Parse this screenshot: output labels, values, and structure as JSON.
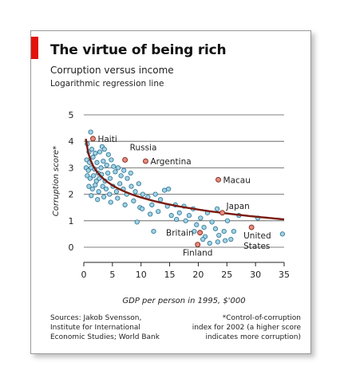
{
  "title": "The virtue of being rich",
  "subtitle": "Corruption versus income",
  "note": "Logarithmic regression line",
  "colors": {
    "brand_red": "#e3120b",
    "dot_fill": "#9fd3e2",
    "dot_stroke": "#2a6f93",
    "highlight_fill": "#e9897c",
    "highlight_stroke": "#7a2a1e",
    "regression": "#7a1a0f"
  },
  "sources": [
    "Sources: Jakob Svensson,",
    "Institute for International",
    "Economic Studies; World Bank"
  ],
  "footnote": [
    "*Control-of-corruption",
    "index for 2002 (a higher score",
    "indicates more corruption)"
  ],
  "chart_data": {
    "type": "scatter",
    "xlabel": "GDP per person in 1995, $'000",
    "ylabel": "Corruption score*",
    "xlim": [
      0,
      35
    ],
    "ylim": [
      -0.3,
      5
    ],
    "xticks": [
      0,
      5,
      10,
      15,
      20,
      25,
      30,
      35
    ],
    "yticks": [
      0,
      1,
      2,
      3,
      4,
      5
    ],
    "grid": "horizontal",
    "regression": {
      "form": "a - b*ln(x)",
      "a": 3.4,
      "b": 0.66,
      "x_range": [
        0.35,
        35
      ]
    },
    "highlighted": [
      {
        "label": "Haiti",
        "x": 1.6,
        "y": 4.1
      },
      {
        "label": "Russia",
        "x": 7.2,
        "y": 3.3
      },
      {
        "label": "Argentina",
        "x": 10.8,
        "y": 3.25
      },
      {
        "label": "Macau",
        "x": 23.5,
        "y": 2.55
      },
      {
        "label": "Japan",
        "x": 24.2,
        "y": 1.3
      },
      {
        "label": "Britain",
        "x": 20.3,
        "y": 0.55
      },
      {
        "label": "Finland",
        "x": 19.9,
        "y": 0.1
      },
      {
        "label": "United States",
        "x": 29.3,
        "y": 0.75
      }
    ],
    "points": [
      [
        1.2,
        4.35
      ],
      [
        0.6,
        3.9
      ],
      [
        0.9,
        3.6
      ],
      [
        1.4,
        3.7
      ],
      [
        2.0,
        3.55
      ],
      [
        0.5,
        3.3
      ],
      [
        1.0,
        3.2
      ],
      [
        1.6,
        3.4
      ],
      [
        2.3,
        3.2
      ],
      [
        2.8,
        3.6
      ],
      [
        3.2,
        3.8
      ],
      [
        3.6,
        3.7
      ],
      [
        0.4,
        3.0
      ],
      [
        0.8,
        2.9
      ],
      [
        1.3,
        3.0
      ],
      [
        1.9,
        2.95
      ],
      [
        2.5,
        2.8
      ],
      [
        3.0,
        3.0
      ],
      [
        3.4,
        3.25
      ],
      [
        4.0,
        3.1
      ],
      [
        4.3,
        3.5
      ],
      [
        4.8,
        3.3
      ],
      [
        5.2,
        3.05
      ],
      [
        0.6,
        2.7
      ],
      [
        1.1,
        2.6
      ],
      [
        1.7,
        2.7
      ],
      [
        2.2,
        2.5
      ],
      [
        2.7,
        2.6
      ],
      [
        3.1,
        2.75
      ],
      [
        3.7,
        2.5
      ],
      [
        4.2,
        2.8
      ],
      [
        4.6,
        2.6
      ],
      [
        5.5,
        2.85
      ],
      [
        6.0,
        3.0
      ],
      [
        6.5,
        2.7
      ],
      [
        7.0,
        2.9
      ],
      [
        7.6,
        2.6
      ],
      [
        8.2,
        2.8
      ],
      [
        0.9,
        2.3
      ],
      [
        1.5,
        2.2
      ],
      [
        2.0,
        2.35
      ],
      [
        2.6,
        2.1
      ],
      [
        3.3,
        2.3
      ],
      [
        3.9,
        2.2
      ],
      [
        4.5,
        2.0
      ],
      [
        5.1,
        2.3
      ],
      [
        5.7,
        2.1
      ],
      [
        6.3,
        2.4
      ],
      [
        6.9,
        2.2
      ],
      [
        7.5,
        2.0
      ],
      [
        8.3,
        2.3
      ],
      [
        9.0,
        2.1
      ],
      [
        9.6,
        2.4
      ],
      [
        10.3,
        2.0
      ],
      [
        1.3,
        1.95
      ],
      [
        2.4,
        1.8
      ],
      [
        3.5,
        1.9
      ],
      [
        4.7,
        1.7
      ],
      [
        5.9,
        1.85
      ],
      [
        7.2,
        1.6
      ],
      [
        8.7,
        1.75
      ],
      [
        9.8,
        1.5
      ],
      [
        11.2,
        1.9
      ],
      [
        11.9,
        1.6
      ],
      [
        12.5,
        2.0
      ],
      [
        13.4,
        1.8
      ],
      [
        14.1,
        2.15
      ],
      [
        14.8,
        2.2
      ],
      [
        13.0,
        1.35
      ],
      [
        14.6,
        1.55
      ],
      [
        15.3,
        1.2
      ],
      [
        16.0,
        1.6
      ],
      [
        16.7,
        1.3
      ],
      [
        17.5,
        1.55
      ],
      [
        11.6,
        1.25
      ],
      [
        10.2,
        1.45
      ],
      [
        9.3,
        0.95
      ],
      [
        17.8,
        1.0
      ],
      [
        18.4,
        1.2
      ],
      [
        19.1,
        1.45
      ],
      [
        19.7,
        0.85
      ],
      [
        20.4,
        1.1
      ],
      [
        21.0,
        0.75
      ],
      [
        21.6,
        1.3
      ],
      [
        22.4,
        0.95
      ],
      [
        23.0,
        0.7
      ],
      [
        23.6,
        0.45
      ],
      [
        24.5,
        0.6
      ],
      [
        25.1,
        1.0
      ],
      [
        25.7,
        0.3
      ],
      [
        21.2,
        0.4
      ],
      [
        22.0,
        0.15
      ],
      [
        23.4,
        0.2
      ],
      [
        24.7,
        0.25
      ],
      [
        26.2,
        0.6
      ],
      [
        20.8,
        0.3
      ],
      [
        19.3,
        0.6
      ],
      [
        23.3,
        1.45
      ],
      [
        30.4,
        1.1
      ],
      [
        34.7,
        0.5
      ],
      [
        27.1,
        1.2
      ],
      [
        16.2,
        1.05
      ],
      [
        12.2,
        0.6
      ]
    ]
  }
}
